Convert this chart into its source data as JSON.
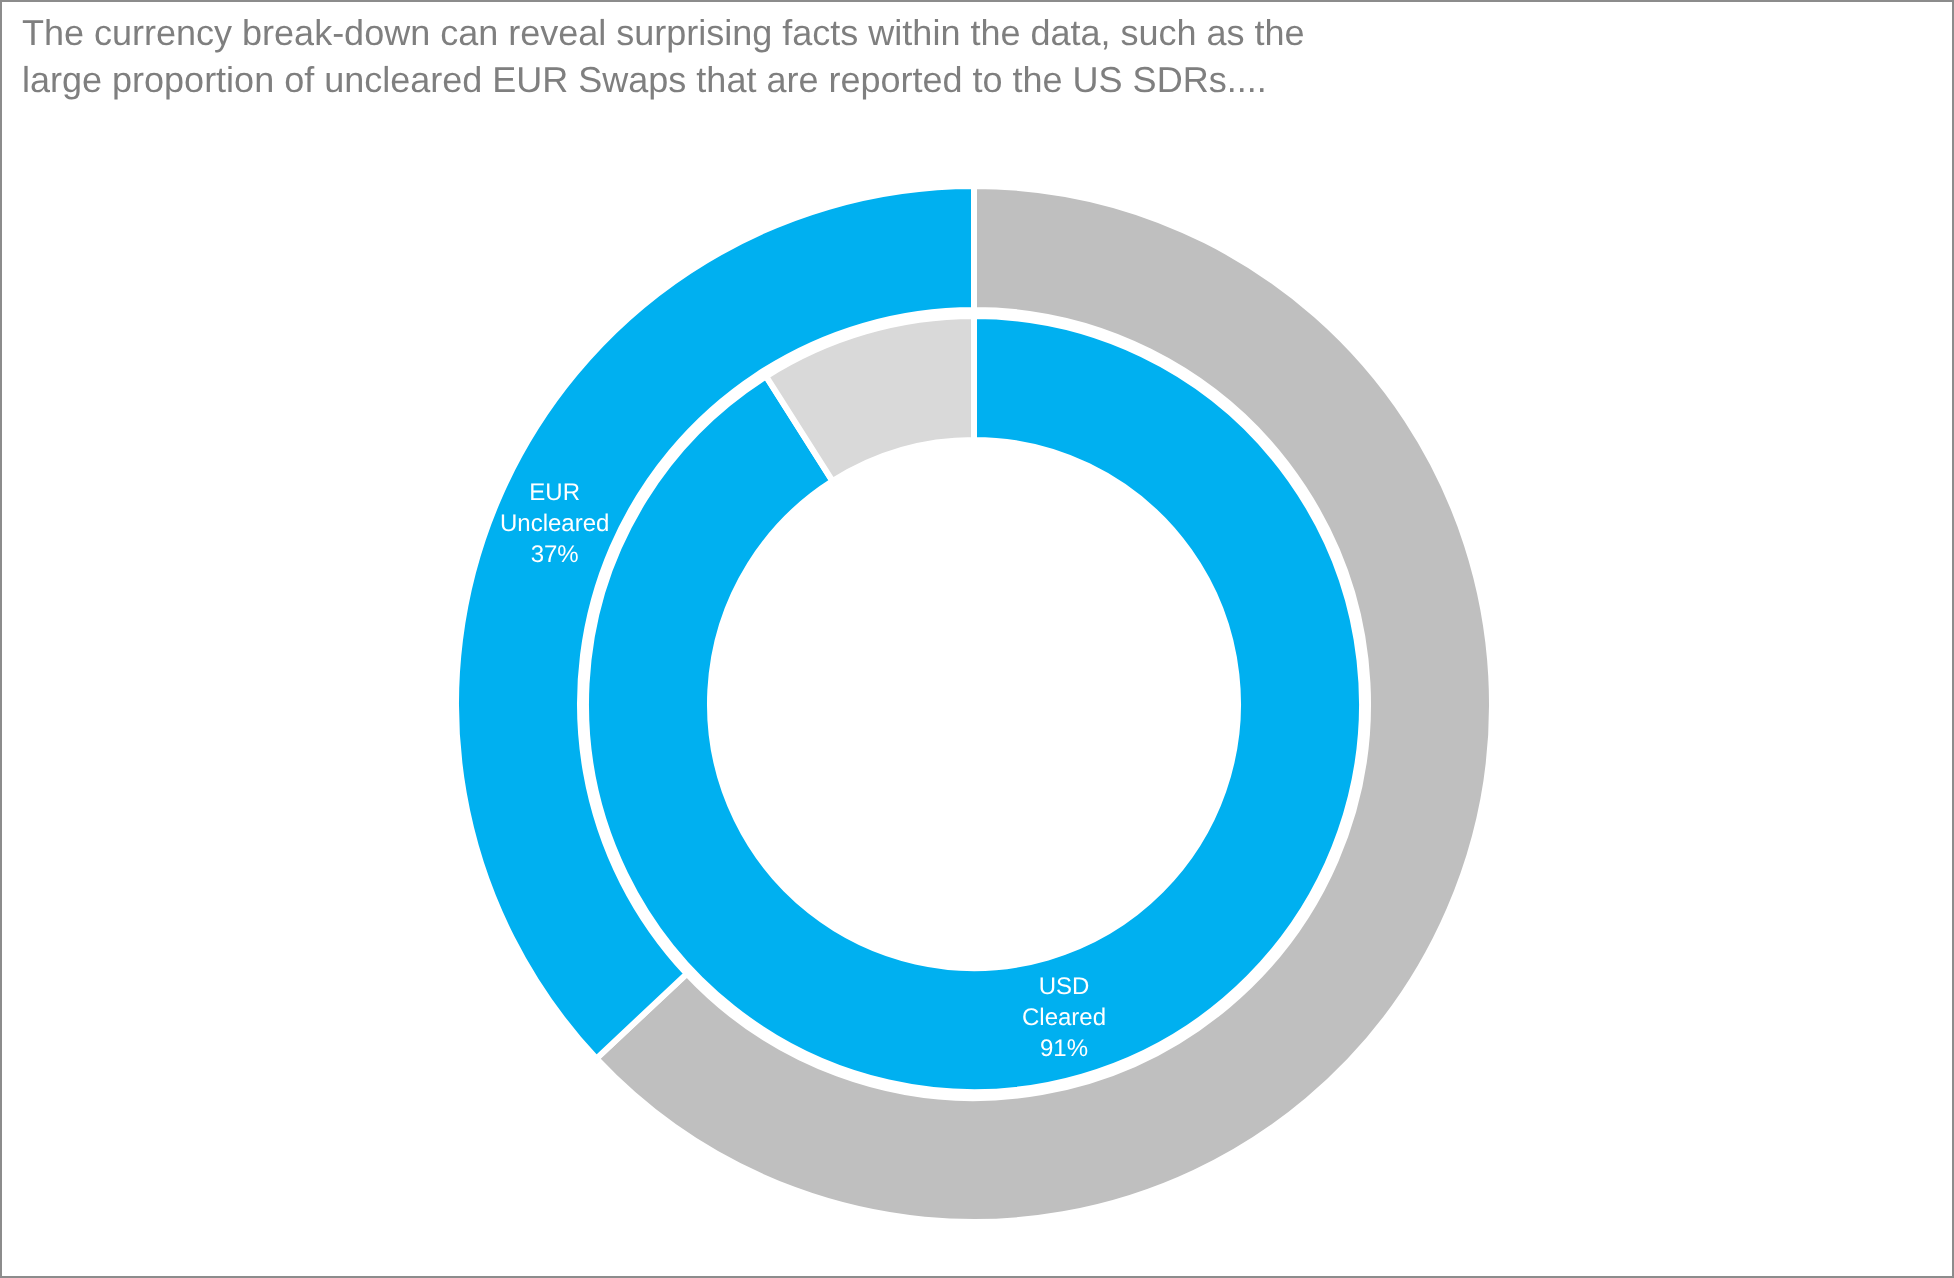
{
  "chart_data": [
    {
      "type": "donut",
      "title": "The currency break-down can reveal surprising facts within the data, such as the large proportion of uncleared EUR Swaps that are reported to the US SDRs....",
      "categories": [
        null,
        "EUR Uncleared"
      ],
      "values": [
        63,
        37
      ],
      "colors": [
        "#bfbfbf",
        "#00b0f0"
      ],
      "value_labels": [
        null,
        "37%"
      ]
    },
    {
      "type": "donut",
      "categories": [
        "USD Cleared",
        null
      ],
      "values": [
        91,
        9
      ],
      "colors": [
        "#00b0f0",
        "#d9d9d9"
      ],
      "value_labels": [
        "91%",
        null
      ]
    }
  ]
}
